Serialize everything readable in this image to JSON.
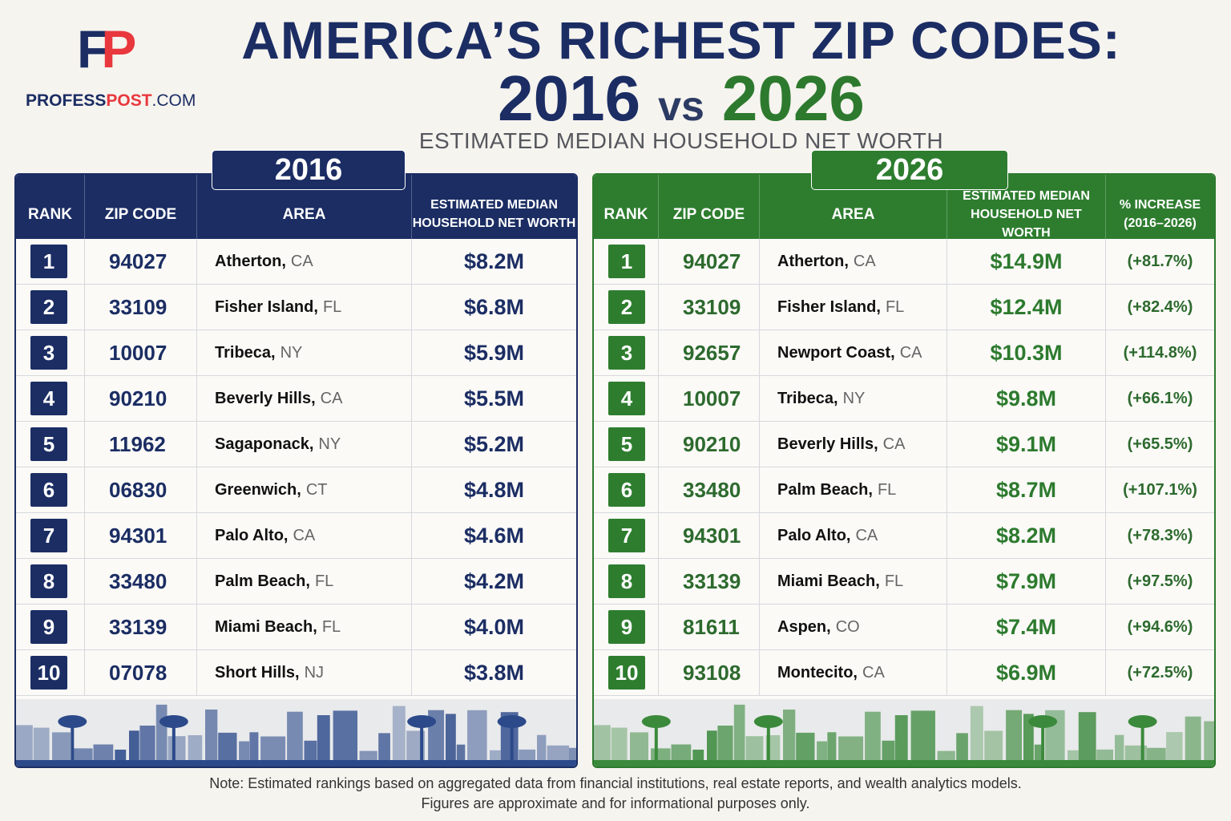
{
  "brand": {
    "mark_f": "F",
    "mark_p": "P",
    "name_a": "PROFESS",
    "name_b": "POST",
    "name_c": ".COM",
    "colors": {
      "navy": "#1b2d63",
      "red": "#e8383d"
    }
  },
  "header": {
    "title": "AMERICA’S RICHEST ZIP CODES:",
    "year_left": "2016",
    "vs": "vs",
    "year_right": "2026",
    "metric": "ESTIMATED MEDIAN HOUSEHOLD NET WORTH"
  },
  "chart_data": [
    {
      "type": "table",
      "title": "2016",
      "columns": [
        "RANK",
        "ZIP CODE",
        "AREA",
        "ESTIMATED MEDIAN HOUSEHOLD NET WORTH"
      ],
      "rows": [
        {
          "rank": "1",
          "zip": "94027",
          "city": "Atherton,",
          "state": "CA",
          "value": "$8.2M"
        },
        {
          "rank": "2",
          "zip": "33109",
          "city": "Fisher Island,",
          "state": "FL",
          "value": "$6.8M"
        },
        {
          "rank": "3",
          "zip": "10007",
          "city": "Tribeca,",
          "state": "NY",
          "value": "$5.9M"
        },
        {
          "rank": "4",
          "zip": "90210",
          "city": "Beverly Hills,",
          "state": "CA",
          "value": "$5.5M"
        },
        {
          "rank": "5",
          "zip": "11962",
          "city": "Sagaponack,",
          "state": "NY",
          "value": "$5.2M"
        },
        {
          "rank": "6",
          "zip": "06830",
          "city": "Greenwich,",
          "state": "CT",
          "value": "$4.8M"
        },
        {
          "rank": "7",
          "zip": "94301",
          "city": "Palo Alto,",
          "state": "CA",
          "value": "$4.6M"
        },
        {
          "rank": "8",
          "zip": "33480",
          "city": "Palm Beach,",
          "state": "FL",
          "value": "$4.2M"
        },
        {
          "rank": "9",
          "zip": "33139",
          "city": "Miami Beach,",
          "state": "FL",
          "value": "$4.0M"
        },
        {
          "rank": "10",
          "zip": "07078",
          "city": "Short Hills,",
          "state": "NJ",
          "value": "$3.8M"
        }
      ]
    },
    {
      "type": "table",
      "title": "2026",
      "columns": [
        "RANK",
        "ZIP CODE",
        "AREA",
        "ESTIMATED MEDIAN HOUSEHOLD NET WORTH",
        "% INCREASE (2016–2026)"
      ],
      "rows": [
        {
          "rank": "1",
          "zip": "94027",
          "city": "Atherton,",
          "state": "CA",
          "value": "$14.9M",
          "pct": "(+81.7%)"
        },
        {
          "rank": "2",
          "zip": "33109",
          "city": "Fisher Island,",
          "state": "FL",
          "value": "$12.4M",
          "pct": "(+82.4%)"
        },
        {
          "rank": "3",
          "zip": "92657",
          "city": "Newport Coast,",
          "state": "CA",
          "value": "$10.3M",
          "pct": "(+114.8%)"
        },
        {
          "rank": "4",
          "zip": "10007",
          "city": "Tribeca,",
          "state": "NY",
          "value": "$9.8M",
          "pct": "(+66.1%)"
        },
        {
          "rank": "5",
          "zip": "90210",
          "city": "Beverly Hills,",
          "state": "CA",
          "value": "$9.1M",
          "pct": "(+65.5%)"
        },
        {
          "rank": "6",
          "zip": "33480",
          "city": "Palm Beach,",
          "state": "FL",
          "value": "$8.7M",
          "pct": "(+107.1%)"
        },
        {
          "rank": "7",
          "zip": "94301",
          "city": "Palo Alto,",
          "state": "CA",
          "value": "$8.2M",
          "pct": "(+78.3%)"
        },
        {
          "rank": "8",
          "zip": "33139",
          "city": "Miami Beach,",
          "state": "FL",
          "value": "$7.9M",
          "pct": "(+97.5%)"
        },
        {
          "rank": "9",
          "zip": "81611",
          "city": "Aspen,",
          "state": "CO",
          "value": "$7.4M",
          "pct": "(+94.6%)"
        },
        {
          "rank": "10",
          "zip": "93108",
          "city": "Montecito,",
          "state": "CA",
          "value": "$6.9M",
          "pct": "(+72.5%)"
        }
      ]
    }
  ],
  "table16_header": {
    "rank": "RANK",
    "zip": "ZIP CODE",
    "area": "AREA",
    "value_l1": "ESTIMATED MEDIAN",
    "value_l2": "HOUSEHOLD NET WORTH"
  },
  "table26_header": {
    "rank": "RANK",
    "zip": "ZIP CODE",
    "area": "AREA",
    "value_l1": "ESTIMATED MEDIAN",
    "value_l2": "HOUSEHOLD NET WORTH",
    "pct_l1": "% INCREASE",
    "pct_l2": "(2016–2026)"
  },
  "colors": {
    "panel_2016": "#1b2d63",
    "panel_2026": "#2e7d2f",
    "skyline_2016": "#2c4a8a",
    "skyline_2026": "#3b8a3c"
  },
  "note": {
    "line1": "Note: Estimated rankings based on aggregated data from financial institutions, real estate reports, and wealth analytics models.",
    "line2": "Figures are approximate and for informational purposes only."
  }
}
